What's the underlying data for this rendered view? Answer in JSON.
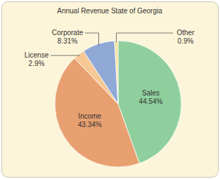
{
  "chart_data": {
    "type": "pie",
    "title": "Annual Revenue State of Georgia",
    "categories": [
      "Sales",
      "Income",
      "License",
      "Corporate",
      "Other"
    ],
    "values": [
      44.54,
      43.34,
      2.9,
      8.31,
      0.9
    ],
    "value_labels": [
      "44.54%",
      "43.34%",
      "2.9%",
      "8.31%",
      "0.9%"
    ],
    "colors": [
      "#8fcf9d",
      "#e8a070",
      "#f6c894",
      "#8fa8d6",
      "#f3e3a2"
    ],
    "data_labels": true
  }
}
